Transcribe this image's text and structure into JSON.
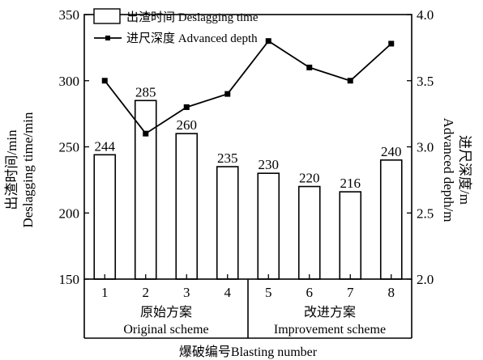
{
  "chart_data": {
    "type": "bar",
    "categories": [
      "1",
      "2",
      "3",
      "4",
      "5",
      "6",
      "7",
      "8"
    ],
    "series": [
      {
        "name": "出渣时间 Deslagging time",
        "kind": "bar",
        "axis": "left",
        "values": [
          244,
          285,
          260,
          235,
          230,
          220,
          216,
          240
        ]
      },
      {
        "name": "进尺深度 Advanced depth",
        "kind": "line",
        "axis": "right",
        "marker": "square",
        "values": [
          3.5,
          3.1,
          3.3,
          3.4,
          3.8,
          3.6,
          3.5,
          3.78
        ]
      }
    ],
    "data_labels": [
      "244",
      "285",
      "260",
      "235",
      "230",
      "220",
      "216",
      "240"
    ],
    "y_left": {
      "label_lines": [
        "出渣时间/min",
        "Deslagging time/min"
      ],
      "ylim": [
        150,
        350
      ],
      "ticks": [
        "150",
        "200",
        "250",
        "300",
        "350"
      ]
    },
    "y_right": {
      "label_lines": [
        "进尺深度/m",
        "Advanced depth/m"
      ],
      "ylim": [
        2.0,
        4.0
      ],
      "ticks": [
        "2.0",
        "2.5",
        "3.0",
        "3.5",
        "4.0"
      ]
    },
    "groups": [
      {
        "label_cn": "原始方案",
        "label_en": "Original scheme",
        "span": [
          1,
          4
        ]
      },
      {
        "label_cn": "改进方案",
        "label_en": "Improvement scheme",
        "span": [
          5,
          8
        ]
      }
    ],
    "xlabel": "爆破编号Blasting number",
    "legend_position": "top-left",
    "grid": false
  }
}
